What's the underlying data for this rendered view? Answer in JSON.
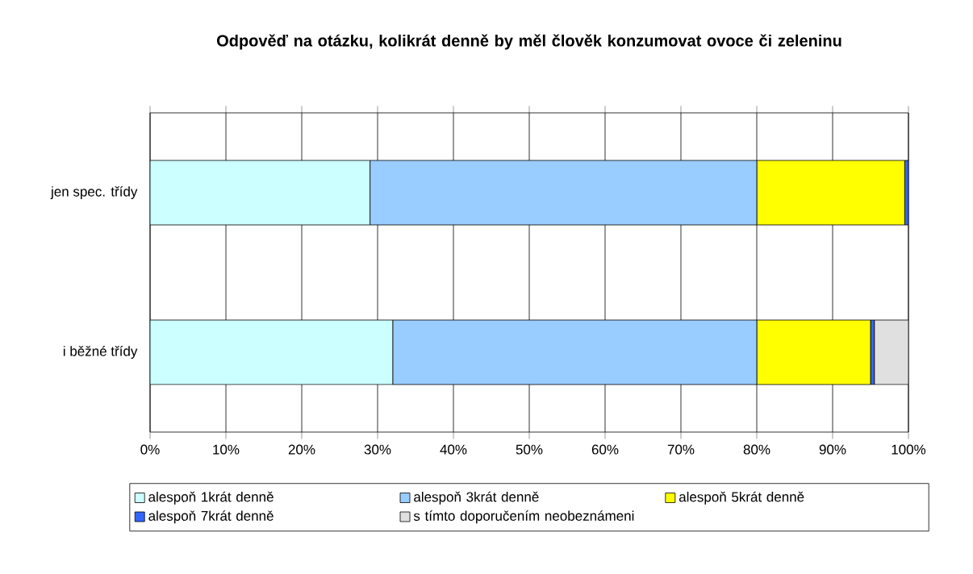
{
  "chart_data": {
    "type": "bar",
    "orientation": "horizontal",
    "stacked": true,
    "title": "Odpověď na otázku, kolikrát denně by měl člověk konzumovat ovoce či zeleninu",
    "categories": [
      "jen spec. třídy",
      "i běžné třídy"
    ],
    "series": [
      {
        "name": "alespoň 1krát denně",
        "color": "#ccffff",
        "values": [
          29,
          32
        ]
      },
      {
        "name": "alespoň 3krát denně",
        "color": "#99ccff",
        "values": [
          51,
          48
        ]
      },
      {
        "name": "alespoň 5krát denně",
        "color": "#ffff00",
        "values": [
          19.5,
          15
        ]
      },
      {
        "name": "alespoň 7krát denně",
        "color": "#3366ff",
        "values": [
          0.5,
          0.5
        ]
      },
      {
        "name": "s tímto doporučením neobeznámeni",
        "color": "#e0e0e0",
        "values": [
          0,
          4.5
        ]
      }
    ],
    "xlim": [
      0,
      100
    ],
    "xticks": [
      {
        "value": 0,
        "label": "0%"
      },
      {
        "value": 10,
        "label": "10%"
      },
      {
        "value": 20,
        "label": "20%"
      },
      {
        "value": 30,
        "label": "30%"
      },
      {
        "value": 40,
        "label": "40%"
      },
      {
        "value": 50,
        "label": "50%"
      },
      {
        "value": 60,
        "label": "60%"
      },
      {
        "value": 70,
        "label": "70%"
      },
      {
        "value": 80,
        "label": "80%"
      },
      {
        "value": 90,
        "label": "90%"
      },
      {
        "value": 100,
        "label": "100%"
      }
    ],
    "grid": "x",
    "legend": "bottom"
  }
}
